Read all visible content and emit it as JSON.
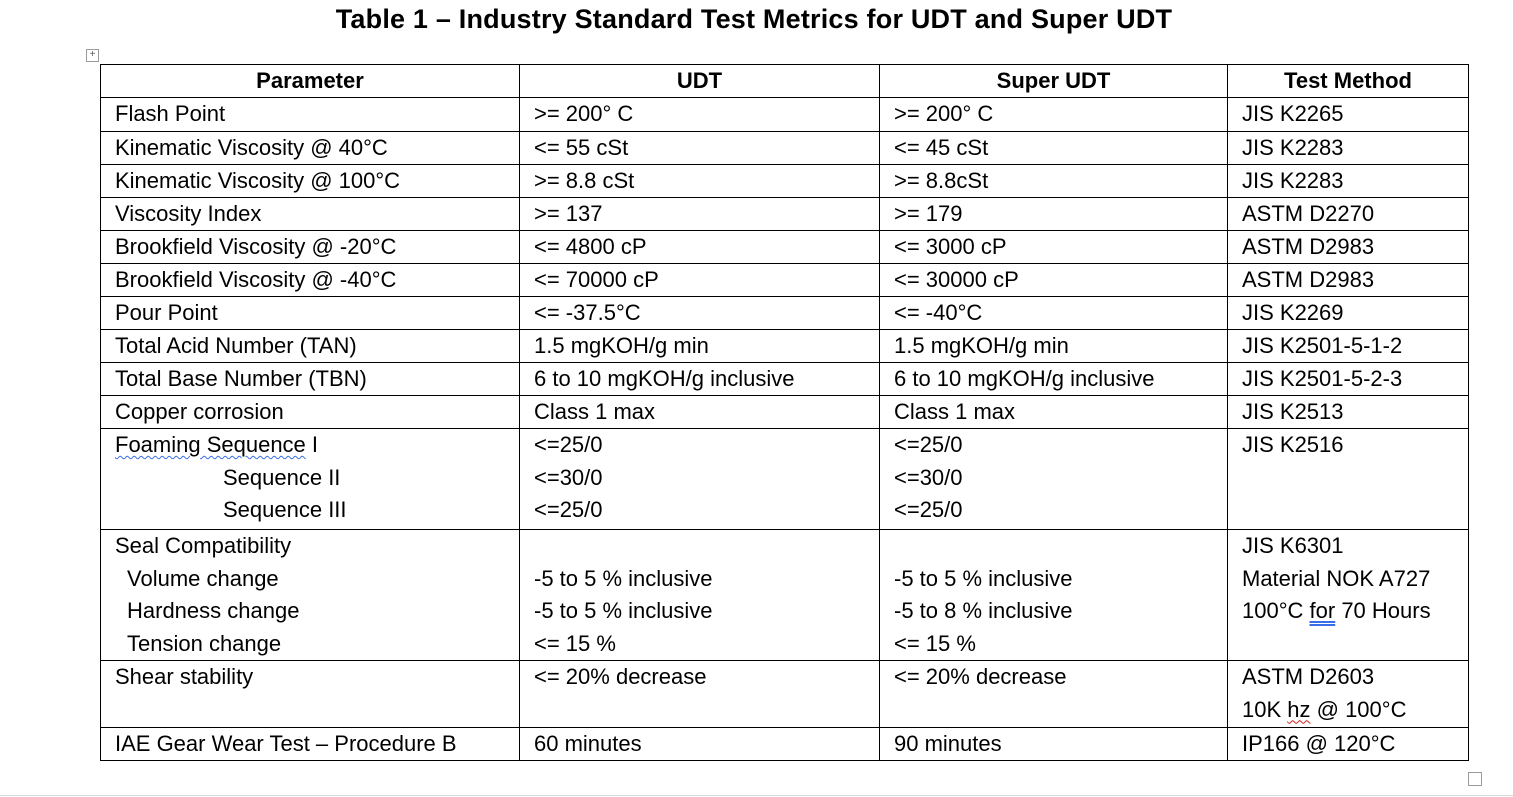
{
  "title": "Table 1 – Industry Standard Test Metrics for UDT and Super UDT",
  "icons": {
    "move": "table-move-handle-icon",
    "resize": "table-resize-handle-icon"
  },
  "headers": [
    "Parameter",
    "UDT",
    "Super UDT",
    "Test Method"
  ],
  "rows": [
    [
      "Flash Point",
      ">= 200° C",
      ">= 200° C",
      "JIS K2265"
    ],
    [
      "Kinematic Viscosity @ 40°C",
      "<= 55 cSt",
      "<= 45 cSt",
      "JIS K2283"
    ],
    [
      "Kinematic Viscosity @ 100°C",
      ">= 8.8 cSt",
      ">= 8.8cSt",
      "JIS K2283"
    ],
    [
      "Viscosity Index",
      ">= 137",
      ">= 179",
      "ASTM D2270"
    ],
    [
      "Brookfield Viscosity @ -20°C",
      "<= 4800 cP",
      "<= 3000 cP",
      "ASTM D2983"
    ],
    [
      "Brookfield Viscosity @ -40°C",
      "<= 70000 cP",
      "<= 30000 cP",
      "ASTM D2983"
    ],
    [
      "Pour Point",
      "<= -37.5°C",
      "<= -40°C",
      "JIS K2269"
    ],
    [
      "Total Acid Number (TAN)",
      "1.5 mgKOH/g min",
      "1.5 mgKOH/g min",
      "JIS K2501-5-1-2"
    ],
    [
      "Total Base Number (TBN)",
      "6 to 10 mgKOH/g inclusive",
      "6 to 10 mgKOH/g inclusive",
      "JIS K2501-5-2-3"
    ],
    [
      "Copper corrosion",
      "Class 1 max",
      "Class 1 max",
      "JIS K2513"
    ]
  ],
  "foaming": {
    "label_a": "Foaming  Sequence",
    "label_a_suffix": " I",
    "label_b": "Sequence  II",
    "label_c": "Sequence  III",
    "udt": [
      "<=25/0",
      "<=30/0",
      "<=25/0"
    ],
    "super_udt": [
      "<=25/0",
      "<=30/0",
      "<=25/0"
    ],
    "method": "JIS K2516"
  },
  "seal": {
    "labels": [
      "Seal Compatibility",
      "Volume change",
      "Hardness change",
      "Tension change"
    ],
    "udt": [
      "-5 to 5 % inclusive",
      "-5 to 5 % inclusive",
      "<= 15 %"
    ],
    "super_udt": [
      "-5 to 5 % inclusive",
      "-5 to 8 % inclusive",
      "<= 15 %"
    ],
    "method": [
      "JIS K6301",
      "Material NOK A727",
      "100°C ",
      "for",
      " 70 Hours"
    ]
  },
  "shear": {
    "label": "Shear stability",
    "udt": "<= 20% decrease",
    "super_udt": "<= 20% decrease",
    "method_1": "ASTM D2603",
    "method_2a": "10K ",
    "method_2b": "hz",
    "method_2c": " @ 100°C"
  },
  "gear": {
    "label": "IAE Gear Wear Test – Procedure  B",
    "udt": "60 minutes",
    "super_udt": "90 minutes",
    "method": "IP166 @ 120°C"
  }
}
